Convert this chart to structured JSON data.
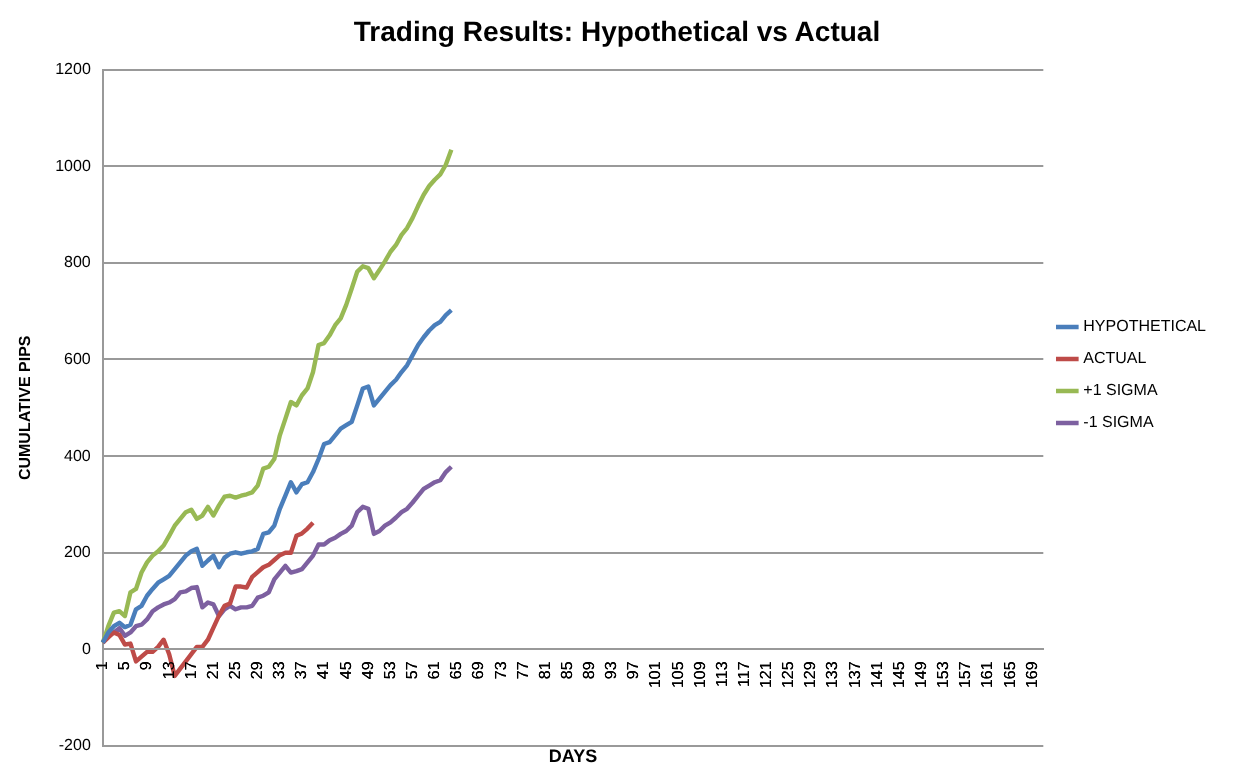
{
  "chart_data": {
    "type": "line",
    "title": "Trading Results: Hypothetical vs Actual",
    "xlabel": "DAYS",
    "ylabel": "CUMULATIVE PIPS",
    "categories": [
      "1",
      null,
      null,
      null,
      "5",
      null,
      null,
      null,
      "9",
      null,
      null,
      null,
      "13",
      null,
      null,
      null,
      "17",
      null,
      null,
      null,
      "21",
      null,
      null,
      null,
      "25",
      null,
      null,
      null,
      "29",
      null,
      null,
      null,
      "33",
      null,
      null,
      null,
      "37",
      null,
      null,
      null,
      "41",
      null,
      null,
      null,
      "45",
      null,
      null,
      null,
      "49",
      null,
      null,
      null,
      "53",
      null,
      null,
      null,
      "57",
      null,
      null,
      null,
      "61",
      null,
      null,
      null,
      "65",
      null,
      null,
      null,
      "69",
      null,
      null,
      null,
      "73",
      null,
      null,
      null,
      "77",
      null,
      null,
      null,
      "81",
      null,
      null,
      null,
      "85",
      null,
      null,
      null,
      "89",
      null,
      null,
      null,
      "93",
      null,
      null,
      null,
      "97",
      null,
      null,
      null,
      "101",
      null,
      null,
      null,
      "105",
      null,
      null,
      null,
      "109",
      null,
      null,
      null,
      "113",
      null,
      null,
      null,
      "117",
      null,
      null,
      null,
      "121",
      null,
      null,
      null,
      "125",
      null,
      null,
      null,
      "129",
      null,
      null,
      null,
      "133",
      null,
      null,
      null,
      "137",
      null,
      null,
      null,
      "141",
      null,
      null,
      null,
      "145",
      null,
      null,
      null,
      "149",
      null,
      null,
      null,
      "153",
      null,
      null,
      null,
      "157",
      null,
      null,
      null,
      "161",
      null,
      null,
      null,
      "165",
      null,
      null,
      null,
      "169",
      null,
      null
    ],
    "series": [
      {
        "name": "HYPOTHETICAL",
        "color": "#4a7ebb",
        "values": [
          14,
          35,
          48,
          55,
          46,
          51,
          83,
          90,
          111,
          125,
          138,
          145,
          152,
          166,
          180,
          194,
          203,
          208,
          173,
          184,
          194,
          170,
          190,
          198,
          201,
          198,
          201,
          203,
          208,
          239,
          242,
          256,
          291,
          318,
          346,
          325,
          342,
          346,
          367,
          394,
          425,
          429,
          443,
          457,
          464,
          471,
          505,
          540,
          544,
          505,
          519,
          533,
          547,
          558,
          574,
          588,
          609,
          630,
          646,
          660,
          671,
          678,
          692,
          702,
          null,
          null,
          null,
          null,
          null,
          null,
          null,
          null,
          null,
          null,
          null,
          null,
          null,
          null,
          null,
          null,
          null,
          null,
          null,
          null,
          null,
          null,
          null,
          null,
          null,
          null,
          null,
          null,
          null,
          null,
          null,
          null,
          null,
          null,
          null,
          null,
          null,
          null,
          null,
          null,
          null,
          null,
          null,
          null,
          null,
          null,
          null,
          null,
          null,
          null,
          null,
          null,
          null,
          null,
          null,
          null,
          null,
          null,
          null,
          null,
          null,
          null,
          null,
          null,
          null,
          null,
          null,
          null,
          null,
          null,
          null,
          null,
          null,
          null,
          null,
          null,
          null,
          null,
          null,
          null,
          null,
          null,
          null,
          null,
          null,
          null,
          null,
          null,
          null,
          null,
          null,
          null,
          null,
          null,
          null,
          null,
          null,
          null,
          null,
          null,
          null,
          null,
          null,
          null,
          null,
          null,
          null
        ]
      },
      {
        "name": "ACTUAL",
        "color": "#be4b48",
        "values": [
          14,
          25,
          35,
          30,
          10,
          12,
          -25,
          -15,
          -5,
          -5,
          5,
          20,
          -10,
          -55,
          -40,
          -25,
          -10,
          5,
          5,
          20,
          45,
          70,
          90,
          95,
          130,
          130,
          128,
          150,
          160,
          170,
          175,
          185,
          195,
          200,
          200,
          235,
          240,
          250,
          262,
          null,
          null,
          null,
          null,
          null,
          null,
          null,
          null,
          null,
          null,
          null,
          null,
          null,
          null,
          null,
          null,
          null,
          null,
          null,
          null,
          null,
          null,
          null,
          null,
          null,
          null,
          null,
          null,
          null,
          null,
          null,
          null,
          null,
          null,
          null,
          null,
          null,
          null,
          null,
          null,
          null,
          null,
          null,
          null,
          null,
          null,
          null,
          null,
          null,
          null,
          null,
          null,
          null,
          null,
          null,
          null,
          null,
          null,
          null,
          null,
          null,
          null,
          null,
          null,
          null,
          null,
          null,
          null,
          null,
          null,
          null,
          null,
          null,
          null,
          null,
          null,
          null,
          null,
          null,
          null,
          null,
          null,
          null,
          null,
          null,
          null,
          null,
          null,
          null,
          null,
          null,
          null,
          null,
          null,
          null,
          null,
          null,
          null,
          null,
          null,
          null,
          null,
          null,
          null,
          null,
          null,
          null,
          null,
          null,
          null,
          null,
          null,
          null,
          null,
          null,
          null,
          null,
          null,
          null,
          null,
          null,
          null,
          null,
          null,
          null,
          null,
          null,
          null,
          null,
          null,
          null,
          null
        ]
      },
      {
        "name": "+1 SIGMA",
        "color": "#98b954",
        "values": [
          14,
          48,
          76,
          79,
          69,
          118,
          125,
          159,
          180,
          194,
          203,
          215,
          235,
          256,
          270,
          284,
          289,
          270,
          277,
          295,
          277,
          298,
          316,
          318,
          314,
          318,
          321,
          325,
          339,
          374,
          378,
          394,
          443,
          477,
          512,
          505,
          526,
          540,
          574,
          630,
          634,
          650,
          671,
          685,
          713,
          747,
          782,
          793,
          789,
          768,
          785,
          803,
          823,
          837,
          858,
          872,
          893,
          918,
          941,
          959,
          972,
          983,
          1003,
          1034,
          null,
          null,
          null,
          null,
          null,
          null,
          null,
          null,
          null,
          null,
          null,
          null,
          null,
          null,
          null,
          null,
          null,
          null,
          null,
          null,
          null,
          null,
          null,
          null,
          null,
          null,
          null,
          null,
          null,
          null,
          null,
          null,
          null,
          null,
          null,
          null,
          null,
          null,
          null,
          null,
          null,
          null,
          null,
          null,
          null,
          null,
          null,
          null,
          null,
          null,
          null,
          null,
          null,
          null,
          null,
          null,
          null,
          null,
          null,
          null,
          null,
          null,
          null,
          null,
          null,
          null,
          null,
          null,
          null,
          null,
          null,
          null,
          null,
          null,
          null,
          null,
          null,
          null,
          null,
          null,
          null,
          null,
          null,
          null,
          null,
          null,
          null,
          null,
          null,
          null,
          null,
          null,
          null,
          null,
          null,
          null,
          null,
          null,
          null,
          null,
          null,
          null,
          null,
          null,
          null,
          null,
          null
        ]
      },
      {
        "name": "-1 SIGMA",
        "color": "#7d60a0",
        "values": [
          14,
          28,
          35,
          44,
          28,
          35,
          48,
          51,
          62,
          79,
          87,
          93,
          97,
          104,
          118,
          120,
          127,
          129,
          87,
          97,
          93,
          69,
          83,
          90,
          83,
          87,
          87,
          90,
          107,
          111,
          118,
          145,
          159,
          173,
          159,
          162,
          166,
          180,
          194,
          217,
          217,
          226,
          231,
          239,
          245,
          256,
          284,
          295,
          291,
          239,
          245,
          256,
          263,
          273,
          284,
          291,
          304,
          318,
          332,
          339,
          346,
          350,
          367,
          378,
          null,
          null,
          null,
          null,
          null,
          null,
          null,
          null,
          null,
          null,
          null,
          null,
          null,
          null,
          null,
          null,
          null,
          null,
          null,
          null,
          null,
          null,
          null,
          null,
          null,
          null,
          null,
          null,
          null,
          null,
          null,
          null,
          null,
          null,
          null,
          null,
          null,
          null,
          null,
          null,
          null,
          null,
          null,
          null,
          null,
          null,
          null,
          null,
          null,
          null,
          null,
          null,
          null,
          null,
          null,
          null,
          null,
          null,
          null,
          null,
          null,
          null,
          null,
          null,
          null,
          null,
          null,
          null,
          null,
          null,
          null,
          null,
          null,
          null,
          null,
          null,
          null,
          null,
          null,
          null,
          null,
          null,
          null,
          null,
          null,
          null,
          null,
          null,
          null,
          null,
          null,
          null,
          null,
          null,
          null,
          null,
          null,
          null,
          null,
          null,
          null,
          null,
          null,
          null,
          null,
          null,
          null
        ]
      }
    ],
    "ylim": [
      -200,
      1200
    ],
    "yticks": [
      -200,
      0,
      200,
      400,
      600,
      800,
      1000,
      1200
    ],
    "grid": "y",
    "legend": "right",
    "marker": "none",
    "line_style": "solid"
  }
}
